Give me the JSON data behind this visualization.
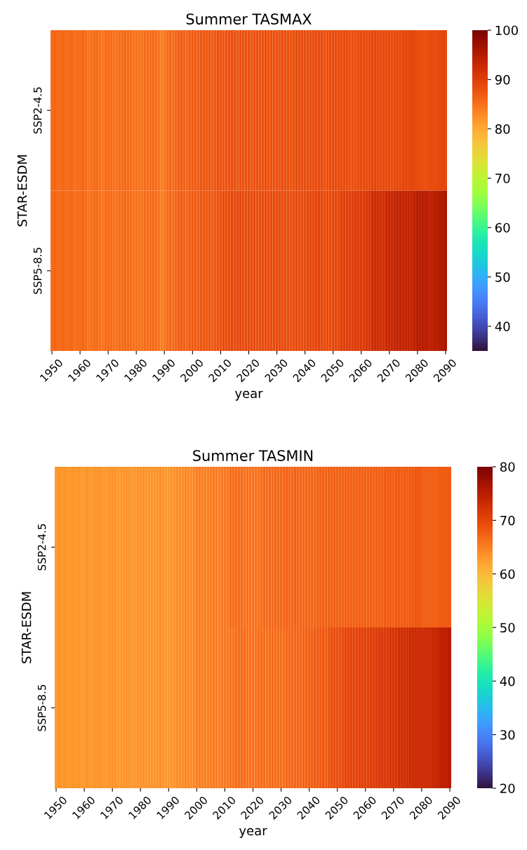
{
  "chart_data": [
    {
      "type": "heatmap",
      "title": "Summer TASMAX",
      "xlabel": "year",
      "ylabel": "STAR-ESDM",
      "categories": [
        "1950",
        null,
        null,
        null,
        null,
        null,
        null,
        null,
        null,
        null,
        "1960",
        null,
        null,
        null,
        null,
        null,
        null,
        null,
        null,
        null,
        "1970",
        null,
        null,
        null,
        null,
        null,
        null,
        null,
        null,
        null,
        "1980",
        null,
        null,
        null,
        null,
        null,
        null,
        null,
        null,
        null,
        "1990",
        null,
        null,
        null,
        null,
        null,
        null,
        null,
        null,
        null,
        "2000",
        null,
        null,
        null,
        null,
        null,
        null,
        null,
        null,
        null,
        "2010",
        null,
        null,
        null,
        null,
        null,
        null,
        null,
        null,
        null,
        "2020",
        null,
        null,
        null,
        null,
        null,
        null,
        null,
        null,
        null,
        "2030",
        null,
        null,
        null,
        null,
        null,
        null,
        null,
        null,
        null,
        "2040",
        null,
        null,
        null,
        null,
        null,
        null,
        null,
        null,
        null,
        "2050",
        null,
        null,
        null,
        null,
        null,
        null,
        null,
        null,
        null,
        "2060",
        null,
        null,
        null,
        null,
        null,
        null,
        null,
        null,
        null,
        "2070",
        null,
        null,
        null,
        null,
        null,
        null,
        null,
        null,
        null,
        "2080",
        null,
        null,
        null,
        null,
        null,
        null,
        null,
        null,
        null,
        "2090"
      ],
      "y_categories": [
        "SSP2-4.5",
        "SSP5-8.5"
      ],
      "cells": [
        [
          85.5,
          86,
          85.5,
          85.5,
          86,
          85.5,
          85.5,
          86,
          85,
          85.5,
          85.5,
          86,
          85.5,
          84.5,
          85,
          85.5,
          85.5,
          85,
          84.5,
          85.5,
          85.5,
          85.5,
          85,
          85,
          85.5,
          85.5,
          86,
          85.5,
          85.5,
          85,
          85,
          85,
          85,
          85.5,
          85.5,
          85.5,
          86,
          85.5,
          85,
          84,
          84.5,
          85.5,
          86,
          85.5,
          86,
          86.5,
          87,
          86.5,
          86,
          87,
          87,
          87,
          87,
          87.5,
          87.5,
          87.5,
          87.5,
          87,
          87.5,
          88,
          88,
          87.5,
          88,
          88,
          88.5,
          88,
          87.5,
          88,
          88,
          88,
          88,
          87.5,
          88,
          88,
          88,
          88,
          88.5,
          88,
          88,
          88,
          88,
          88,
          88.5,
          88,
          88,
          88,
          88,
          88.5,
          88.5,
          88.5,
          88.5,
          88.5,
          88.5,
          88.5,
          88.5,
          88.5,
          88.5,
          88,
          88,
          88.5,
          88.5,
          88.5,
          88.5,
          88.5,
          88.5,
          88.5,
          88,
          88,
          88,
          88.5,
          88.5,
          88.5,
          88.5,
          88.5,
          89,
          89,
          88.5,
          88.5,
          88.5,
          88.5,
          88.5,
          88,
          88.5,
          88.5,
          88.5,
          89,
          89,
          89,
          89.5,
          89,
          88.5,
          88.5,
          88,
          88,
          88.5,
          88.5,
          88.5,
          88.5,
          89,
          89,
          89
        ],
        [
          85.5,
          86,
          85.5,
          85.5,
          86,
          85.5,
          85.5,
          86,
          85,
          85.5,
          85.5,
          86,
          85.5,
          84.5,
          85,
          85.5,
          85.5,
          85,
          84.5,
          85.5,
          85.5,
          85.5,
          85,
          85,
          85.5,
          85.5,
          86,
          85.5,
          85.5,
          85,
          85,
          85,
          85,
          85.5,
          85.5,
          85.5,
          86,
          85.5,
          85,
          84,
          84.5,
          85.5,
          86,
          85.5,
          86,
          86.5,
          87,
          86.5,
          86,
          87,
          87,
          87,
          87,
          87.5,
          87.5,
          87.5,
          87.5,
          87,
          87.5,
          88,
          88,
          88.5,
          88.5,
          88.5,
          89,
          88.5,
          89,
          89,
          88.5,
          88.5,
          88.5,
          88.5,
          88.5,
          88,
          88.5,
          88.5,
          88.5,
          88.5,
          88.5,
          88.5,
          88.5,
          88.5,
          88.5,
          88.5,
          88.5,
          88,
          88.5,
          88.5,
          88.5,
          88.5,
          88.5,
          89,
          89,
          89,
          89.5,
          89.5,
          89,
          88.5,
          88.5,
          88.5,
          89,
          89,
          89,
          90,
          90,
          90,
          90,
          90,
          90.5,
          90.5,
          90.5,
          90.5,
          91,
          91,
          92.5,
          92.5,
          92.5,
          92,
          92,
          93,
          93,
          93,
          93.5,
          93.5,
          93.5,
          93.5,
          93.5,
          93.5,
          93.5,
          94,
          94.5,
          94.5,
          94.5,
          94.5,
          94,
          94,
          94.5,
          94.5,
          95,
          95,
          96
        ]
      ],
      "clim": [
        35,
        100
      ],
      "cticks": [
        40,
        50,
        60,
        70,
        80,
        90,
        100
      ]
    },
    {
      "type": "heatmap",
      "title": "Summer TASMIN",
      "xlabel": "year",
      "ylabel": "STAR-ESDM",
      "categories": [
        "1950",
        null,
        null,
        null,
        null,
        null,
        null,
        null,
        null,
        null,
        "1960",
        null,
        null,
        null,
        null,
        null,
        null,
        null,
        null,
        null,
        "1970",
        null,
        null,
        null,
        null,
        null,
        null,
        null,
        null,
        null,
        "1980",
        null,
        null,
        null,
        null,
        null,
        null,
        null,
        null,
        null,
        "1990",
        null,
        null,
        null,
        null,
        null,
        null,
        null,
        null,
        null,
        "2000",
        null,
        null,
        null,
        null,
        null,
        null,
        null,
        null,
        null,
        "2010",
        null,
        null,
        null,
        null,
        null,
        null,
        null,
        null,
        null,
        "2020",
        null,
        null,
        null,
        null,
        null,
        null,
        null,
        null,
        null,
        "2030",
        null,
        null,
        null,
        null,
        null,
        null,
        null,
        null,
        null,
        "2040",
        null,
        null,
        null,
        null,
        null,
        null,
        null,
        null,
        null,
        "2050",
        null,
        null,
        null,
        null,
        null,
        null,
        null,
        null,
        null,
        "2060",
        null,
        null,
        null,
        null,
        null,
        null,
        null,
        null,
        null,
        "2070",
        null,
        null,
        null,
        null,
        null,
        null,
        null,
        null,
        null,
        "2080",
        null,
        null,
        null,
        null,
        null,
        null,
        null,
        null,
        null,
        "2090"
      ],
      "y_categories": [
        "SSP2-4.5",
        "SSP5-8.5"
      ],
      "cells": [
        [
          63,
          63.5,
          63,
          63.5,
          63,
          63,
          63.5,
          63,
          63.5,
          63,
          63,
          63.5,
          63,
          63,
          63.5,
          63.5,
          63.5,
          63,
          63,
          63.5,
          63.5,
          63.5,
          63,
          63,
          63.5,
          63.5,
          63.5,
          63,
          63,
          63.5,
          63.5,
          63.5,
          63.5,
          63.5,
          63.5,
          63.5,
          63.5,
          64,
          63.5,
          63,
          63,
          63.5,
          63.5,
          64,
          64,
          64,
          64.5,
          64.5,
          64,
          64.5,
          65,
          65,
          65,
          65,
          65,
          65,
          65.5,
          65,
          65,
          65.5,
          65.5,
          65.5,
          66.5,
          66.5,
          66.5,
          66.5,
          66.5,
          66,
          66,
          66,
          66,
          66,
          66,
          66.5,
          67,
          66.5,
          67,
          66.5,
          67,
          67,
          67,
          67,
          67.5,
          67,
          67,
          67.5,
          67,
          67,
          67,
          67,
          67,
          67,
          67,
          67.5,
          67.5,
          67.5,
          67.5,
          67.5,
          67.5,
          67.5,
          67.5,
          67.5,
          67.5,
          67.5,
          67.5,
          67.5,
          67.5,
          67.5,
          67.5,
          67.5,
          67.5,
          67.5,
          67.5,
          67.5,
          67.5,
          67.5,
          67.5,
          68,
          68,
          68,
          67.5,
          68,
          68,
          67.5,
          68,
          67.5,
          68,
          68,
          68.5,
          68.5,
          68,
          67.5,
          67.5,
          67.5,
          67.5,
          67.5,
          68,
          68,
          68,
          68,
          68
        ],
        [
          63,
          63.5,
          63,
          63.5,
          63,
          63,
          63.5,
          63,
          63.5,
          63,
          63,
          63.5,
          63,
          63,
          63.5,
          63.5,
          63.5,
          63,
          63,
          63.5,
          63.5,
          63.5,
          63,
          63,
          63.5,
          63.5,
          63.5,
          63,
          63,
          63.5,
          63.5,
          63.5,
          63.5,
          63.5,
          63.5,
          63.5,
          63.5,
          64,
          63.5,
          63,
          63,
          63.5,
          63.5,
          64,
          64,
          64,
          64.5,
          64.5,
          64,
          64.5,
          65,
          65,
          65,
          65,
          65,
          65,
          65.5,
          65,
          65,
          65.5,
          65.5,
          65.5,
          66,
          66,
          66.5,
          66.5,
          66.5,
          66.5,
          66,
          66,
          66,
          66,
          66.5,
          66.5,
          66.5,
          66,
          66.5,
          66.5,
          66.5,
          66.5,
          66.5,
          66.5,
          67,
          67,
          67,
          67,
          67,
          67,
          67,
          67.5,
          67.5,
          67.5,
          68,
          68,
          68,
          68.5,
          68,
          68.5,
          69,
          69,
          69,
          69,
          69.5,
          70,
          70,
          70,
          70,
          70,
          70.5,
          70.5,
          70.5,
          70.5,
          71,
          71,
          71,
          71.5,
          71.5,
          71.5,
          71.5,
          72,
          72,
          72,
          72.5,
          72.5,
          72.5,
          72.5,
          73,
          73,
          73,
          73,
          73,
          73,
          73,
          73,
          73.5,
          73.5,
          74,
          74.5,
          74.5,
          74.5,
          75.5
        ]
      ],
      "clim": [
        20,
        80
      ],
      "cticks": [
        20,
        30,
        40,
        50,
        60,
        70,
        80
      ]
    }
  ]
}
